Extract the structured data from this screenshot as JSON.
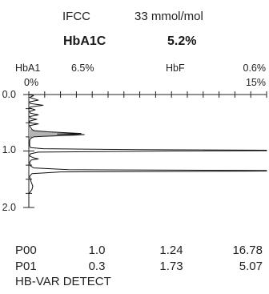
{
  "header": {
    "ifcc_label": "IFCC",
    "ifcc_value": "33 mmol/mol",
    "hba1c_label": "HbA1C",
    "hba1c_value": "5.2%"
  },
  "indices": {
    "hba1_label": "HbA1",
    "hba1_value": "6.5%",
    "hba1_zero": "0%",
    "hbf_label": "HbF",
    "hbf_value": "0.6%",
    "scale_max": "15%"
  },
  "chart_data": {
    "type": "area",
    "title": "",
    "xlabel": "",
    "ylabel": "",
    "orientation": "vertical-time",
    "time_axis_ticks": [
      "0.0",
      "1.0",
      "2.0"
    ],
    "time_range": [
      0.0,
      2.0
    ],
    "abundance_range_percent": [
      0,
      15
    ],
    "fill_color": "#b3b3b3",
    "line_color": "#111111",
    "shaded_peak_start": 0.62,
    "shaded_peak_end": 0.75,
    "trace": [
      [
        0.0,
        0.0
      ],
      [
        0.02,
        0.3
      ],
      [
        0.05,
        0.05
      ],
      [
        0.1,
        0.6
      ],
      [
        0.13,
        0.05
      ],
      [
        0.16,
        0.1
      ],
      [
        0.19,
        0.9
      ],
      [
        0.22,
        0.1
      ],
      [
        0.24,
        0.05
      ],
      [
        0.27,
        0.4
      ],
      [
        0.3,
        0.05
      ],
      [
        0.33,
        0.1
      ],
      [
        0.36,
        0.6
      ],
      [
        0.39,
        0.05
      ],
      [
        0.42,
        0.1
      ],
      [
        0.44,
        0.5
      ],
      [
        0.47,
        0.05
      ],
      [
        0.5,
        0.05
      ],
      [
        0.52,
        0.6
      ],
      [
        0.55,
        0.05
      ],
      [
        0.58,
        0.1
      ],
      [
        0.62,
        0.2
      ],
      [
        0.64,
        0.35
      ],
      [
        0.66,
        1.2
      ],
      [
        0.69,
        3.3
      ],
      [
        0.7,
        1.8
      ],
      [
        0.71,
        3.5
      ],
      [
        0.72,
        2.9
      ],
      [
        0.74,
        1.0
      ],
      [
        0.75,
        0.3
      ],
      [
        0.78,
        0.1
      ],
      [
        0.82,
        0.05
      ],
      [
        0.9,
        0.05
      ],
      [
        0.94,
        0.1
      ],
      [
        0.96,
        0.9
      ],
      [
        0.975,
        7.0
      ],
      [
        0.985,
        15.0
      ],
      [
        0.995,
        15.0
      ],
      [
        1.0,
        9.0
      ],
      [
        1.02,
        0.6
      ],
      [
        1.05,
        0.1
      ],
      [
        1.09,
        0.05
      ],
      [
        1.12,
        0.3
      ],
      [
        1.14,
        0.6
      ],
      [
        1.16,
        0.15
      ],
      [
        1.2,
        0.05
      ],
      [
        1.26,
        0.1
      ],
      [
        1.3,
        0.3
      ],
      [
        1.33,
        2.5
      ],
      [
        1.345,
        15.0
      ],
      [
        1.355,
        15.0
      ],
      [
        1.37,
        2.0
      ],
      [
        1.4,
        0.2
      ],
      [
        1.45,
        0.05
      ],
      [
        1.55,
        0.15
      ],
      [
        1.62,
        0.25
      ],
      [
        1.68,
        0.2
      ],
      [
        1.72,
        0.1
      ],
      [
        1.76,
        0.0
      ],
      [
        2.0,
        0.0
      ]
    ]
  },
  "results": {
    "rows": [
      {
        "peak": "P00",
        "time": "1.0",
        "retention": "1.24",
        "area": "16.78"
      },
      {
        "peak": "P01",
        "time": "0.3",
        "retention": "1.73",
        "area": "5.07"
      }
    ]
  },
  "footer": {
    "text": "HB-VAR DETECT"
  }
}
